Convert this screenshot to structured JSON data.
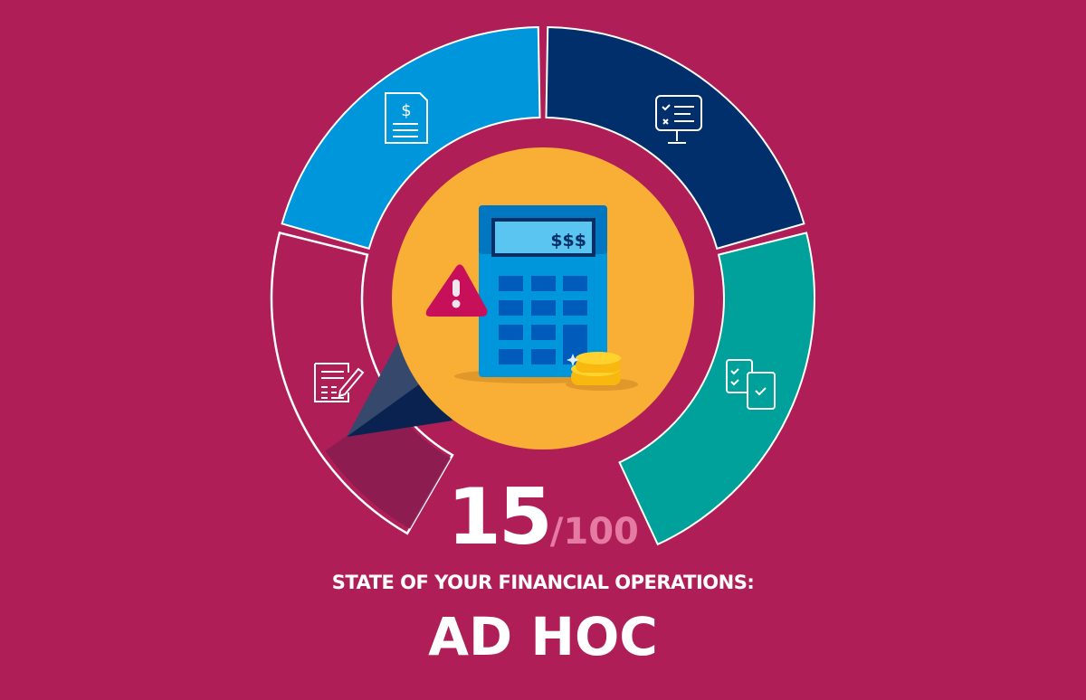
{
  "score": {
    "value": "15",
    "max": "/100",
    "fraction": 0.15
  },
  "subtitle": "STATE OF YOUR FINANCIAL OPERATIONS:",
  "level": "AD HOC",
  "calculator_display": "$$$",
  "colors": {
    "background": "#B01E58",
    "segment_blue": "#0096DB",
    "segment_navy": "#002F6C",
    "segment_teal": "#00A19A",
    "center": "#F9AE35",
    "warning": "#C8105A",
    "needle": "#0A2A55"
  },
  "segments": [
    {
      "name": "invoice",
      "icon": "invoice-dollar-icon",
      "color": "#0096DB"
    },
    {
      "name": "checklist-monitor",
      "icon": "monitor-checklist-icon",
      "color": "#002F6C"
    },
    {
      "name": "approval-docs",
      "icon": "documents-check-icon",
      "color": "#00A19A"
    },
    {
      "name": "manual-form",
      "icon": "form-pencil-icon",
      "color": "none"
    }
  ]
}
